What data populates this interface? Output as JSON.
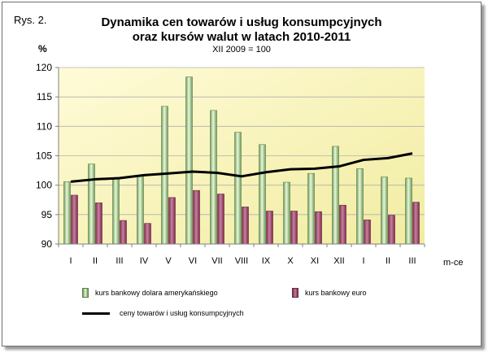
{
  "figure_label": "Rys. 2.",
  "chart_data": {
    "type": "bar",
    "title_line1": "Dynamika cen towarów i usług konsumpcyjnych",
    "title_line2": "oraz kursów walut w latach 2010-2011",
    "subtitle": "XII 2009 = 100",
    "ylabel": "%",
    "xlabel": "m-ce",
    "ylim": [
      90,
      120
    ],
    "yticks": [
      90,
      95,
      100,
      105,
      110,
      115,
      120
    ],
    "grid": true,
    "legend_position": "bottom",
    "categories": [
      "I",
      "II",
      "III",
      "IV",
      "V",
      "VI",
      "VII",
      "VIII",
      "IX",
      "X",
      "XI",
      "XII",
      "I",
      "II",
      "III"
    ],
    "series": [
      {
        "name": "kurs bankowy dolara amerykańskiego",
        "kind": "bar",
        "color": "#9bc97f",
        "values": [
          100.6,
          103.6,
          101.1,
          101.7,
          113.4,
          118.4,
          112.7,
          109.0,
          106.9,
          100.5,
          102.0,
          106.6,
          102.8,
          101.4,
          101.2
        ]
      },
      {
        "name": "kurs bankowy euro",
        "kind": "bar",
        "color": "#a8557a",
        "values": [
          98.3,
          97.0,
          94.0,
          93.5,
          97.9,
          99.1,
          98.5,
          96.3,
          95.6,
          95.6,
          95.5,
          96.6,
          94.1,
          94.9,
          97.1
        ]
      },
      {
        "name": "ceny towarów i usług konsumpcyjnych",
        "kind": "line",
        "color": "#000000",
        "values": [
          100.6,
          101.0,
          101.2,
          101.7,
          102.0,
          102.3,
          102.1,
          101.5,
          102.2,
          102.7,
          102.8,
          103.2,
          104.3,
          104.6,
          105.4
        ]
      }
    ]
  }
}
